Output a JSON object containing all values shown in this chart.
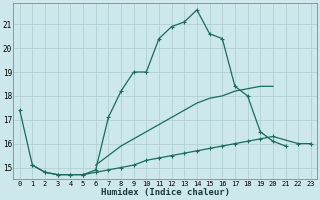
{
  "xlabel": "Humidex (Indice chaleur)",
  "bg_color": "#cce8ec",
  "grid_color": "#aacccc",
  "line_color": "#1a6b5a",
  "xlim": [
    -0.5,
    23.5
  ],
  "ylim": [
    14.5,
    21.9
  ],
  "yticks": [
    15,
    16,
    17,
    18,
    19,
    20,
    21
  ],
  "xticks": [
    0,
    1,
    2,
    3,
    4,
    5,
    6,
    7,
    8,
    9,
    10,
    11,
    12,
    13,
    14,
    15,
    16,
    17,
    18,
    19,
    20,
    21,
    22,
    23
  ],
  "series": [
    {
      "x": [
        0,
        1,
        2,
        3,
        4,
        5,
        6,
        7,
        8,
        9,
        10,
        11,
        12,
        13,
        14,
        15,
        16,
        17,
        18,
        19,
        20,
        21
      ],
      "y": [
        17.4,
        15.1,
        14.8,
        14.7,
        14.7,
        14.7,
        14.9,
        17.1,
        18.2,
        19.0,
        19.0,
        20.4,
        20.9,
        21.1,
        21.6,
        20.6,
        20.4,
        18.4,
        18.0,
        16.5,
        16.1,
        15.9
      ],
      "marker": "+"
    },
    {
      "x": [
        6,
        7,
        8,
        9,
        10,
        11,
        12,
        13,
        14,
        15,
        16,
        17,
        18,
        19,
        20
      ],
      "y": [
        15.1,
        15.5,
        15.9,
        16.2,
        16.5,
        16.8,
        17.1,
        17.4,
        17.7,
        17.9,
        18.0,
        18.2,
        18.3,
        18.4,
        18.4
      ],
      "marker": null
    },
    {
      "x": [
        1,
        2,
        3,
        4,
        5,
        6,
        7,
        8,
        9,
        10,
        11,
        12,
        13,
        14,
        15,
        16,
        17,
        18,
        19,
        20,
        22,
        23
      ],
      "y": [
        15.1,
        14.8,
        14.7,
        14.7,
        14.7,
        14.8,
        14.9,
        15.0,
        15.1,
        15.3,
        15.4,
        15.5,
        15.6,
        15.7,
        15.8,
        15.9,
        16.0,
        16.1,
        16.2,
        16.3,
        16.0,
        16.0
      ],
      "marker": "+"
    }
  ]
}
